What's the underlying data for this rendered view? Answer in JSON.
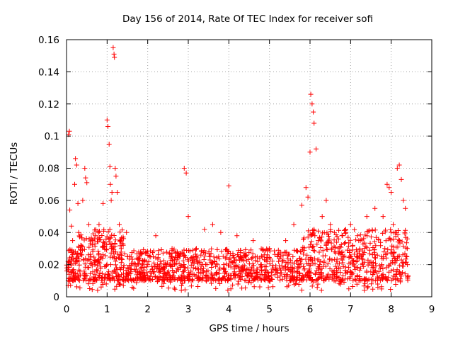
{
  "chart_data": {
    "type": "scatter",
    "title": "Day 156 of 2014, Rate Of TEC Index for receiver sofi",
    "xlabel": "GPS time / hours",
    "ylabel": "ROTI / TECUs",
    "xlim": [
      0,
      9
    ],
    "ylim": [
      0,
      0.16
    ],
    "xticks": [
      0,
      1,
      2,
      3,
      4,
      5,
      6,
      7,
      8,
      9
    ],
    "yticks": [
      0,
      0.02,
      0.04,
      0.06,
      0.08,
      0.1,
      0.12,
      0.14,
      0.16
    ],
    "ytick_labels": [
      "0",
      "0.02",
      "0.04",
      "0.06",
      "0.08",
      "0.1",
      "0.12",
      "0.14",
      "0.16"
    ],
    "grid": true,
    "marker": "+",
    "color": "#ff0000",
    "series": [
      {
        "name": "ROTI",
        "x": [
          0.05,
          0.07,
          0.08,
          0.12,
          0.15,
          0.2,
          0.22,
          0.25,
          0.28,
          0.3,
          0.35,
          0.4,
          0.45,
          0.47,
          0.5,
          0.55,
          0.6,
          0.7,
          0.8,
          0.9,
          0.98,
          1.0,
          1.02,
          1.05,
          1.07,
          1.08,
          1.1,
          1.12,
          1.15,
          1.17,
          1.18,
          1.2,
          1.22,
          1.25,
          1.3,
          1.35,
          1.4,
          1.5,
          1.6,
          1.8,
          2.0,
          2.2,
          2.4,
          2.6,
          2.8,
          2.9,
          2.95,
          3.0,
          3.2,
          3.4,
          3.6,
          3.8,
          4.0,
          4.05,
          4.2,
          4.4,
          4.6,
          4.8,
          5.0,
          5.2,
          5.4,
          5.6,
          5.8,
          5.9,
          5.95,
          6.0,
          6.02,
          6.05,
          6.08,
          6.1,
          6.15,
          6.2,
          6.3,
          6.4,
          6.5,
          6.6,
          6.8,
          7.0,
          7.2,
          7.4,
          7.6,
          7.8,
          7.9,
          7.95,
          8.0,
          8.05,
          8.1,
          8.15,
          8.2,
          8.25,
          8.3,
          8.35,
          8.4
        ],
        "y": [
          0.101,
          0.103,
          0.054,
          0.044,
          0.035,
          0.07,
          0.086,
          0.082,
          0.058,
          0.04,
          0.032,
          0.06,
          0.08,
          0.074,
          0.071,
          0.045,
          0.025,
          0.02,
          0.045,
          0.058,
          0.008,
          0.11,
          0.106,
          0.095,
          0.081,
          0.07,
          0.06,
          0.065,
          0.155,
          0.151,
          0.149,
          0.08,
          0.075,
          0.065,
          0.045,
          0.03,
          0.007,
          0.025,
          0.021,
          0.014,
          0.02,
          0.038,
          0.018,
          0.03,
          0.025,
          0.08,
          0.077,
          0.05,
          0.03,
          0.042,
          0.045,
          0.04,
          0.069,
          0.005,
          0.038,
          0.025,
          0.035,
          0.02,
          0.03,
          0.025,
          0.035,
          0.045,
          0.057,
          0.068,
          0.062,
          0.09,
          0.126,
          0.12,
          0.115,
          0.108,
          0.092,
          0.035,
          0.05,
          0.06,
          0.045,
          0.04,
          0.038,
          0.045,
          0.035,
          0.05,
          0.055,
          0.05,
          0.07,
          0.068,
          0.065,
          0.045,
          0.04,
          0.08,
          0.082,
          0.073,
          0.06,
          0.055,
          0.02
        ],
        "band": {
          "note": "dense background cloud of points",
          "x_range": [
            0.0,
            8.42
          ],
          "y_typical": [
            0.01,
            0.03
          ],
          "y_min": 0.004
        }
      }
    ]
  }
}
